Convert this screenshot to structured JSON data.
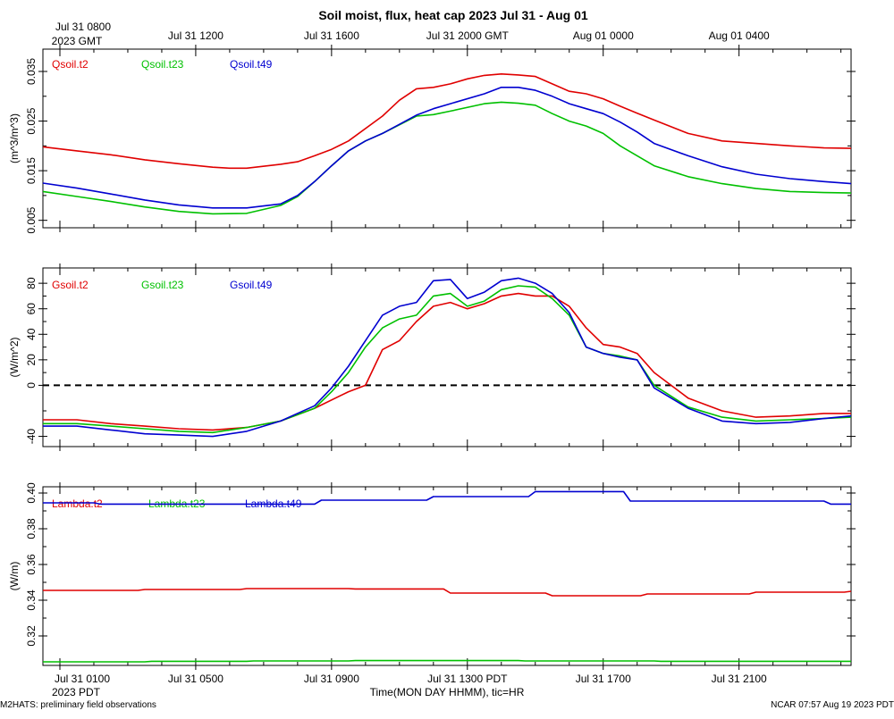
{
  "title": "Soil moist, flux, heat cap 2023 Jul 31 - Aug 01",
  "top_axis": {
    "first_label_line1": "Jul 31 0800",
    "first_label_line2": "2023 GMT",
    "labels": [
      "Jul 31 1200",
      "Jul 31 1600",
      "Jul 31 2000 GMT",
      "Aug 01 0000",
      "Aug 01 0400"
    ]
  },
  "bottom_axis": {
    "first_label_line1": "Jul 31 0100",
    "first_label_line2": "2023 PDT",
    "labels": [
      "Jul 31 0500",
      "Jul 31 0900",
      "Jul 31 1300 PDT",
      "Jul 31 1700",
      "Jul 31 2100"
    ],
    "xlabel": "Time(MON DAY HHMM), tic=HR"
  },
  "footer": {
    "left": "M2HATS: preliminary field observations",
    "right": "NCAR 07:57 Aug 19 2023 PDT"
  },
  "colors": {
    "red": "#e00000",
    "green": "#00c000",
    "blue": "#0000d0"
  },
  "chart_data": [
    {
      "type": "line",
      "ylabel": "(m^3/m^3)",
      "x_unit": "hours since Jul 31 0030 PDT",
      "xlim": [
        0,
        23.8
      ],
      "ylim": [
        0.0035,
        0.0395
      ],
      "yticks": [
        0.005,
        0.015,
        0.025,
        0.035
      ],
      "ytick_labels": [
        "0.005",
        "0.015",
        "0.025",
        "0.035"
      ],
      "series": [
        {
          "name": "Qsoil.t2",
          "color": "#e00000",
          "x": [
            0,
            1,
            2,
            3,
            4,
            5,
            5.5,
            6,
            7,
            7.5,
            8,
            8.5,
            9,
            10,
            10.5,
            11,
            11.5,
            12,
            12.5,
            13,
            13.5,
            14,
            14.5,
            15,
            15.5,
            16,
            16.5,
            17,
            17.5,
            18,
            19,
            20,
            21,
            22,
            23,
            23.8
          ],
          "y": [
            0.0198,
            0.019,
            0.0182,
            0.0172,
            0.0164,
            0.0157,
            0.0155,
            0.0155,
            0.0163,
            0.0168,
            0.018,
            0.0193,
            0.021,
            0.026,
            0.0292,
            0.0315,
            0.0318,
            0.0325,
            0.0335,
            0.0342,
            0.0345,
            0.0343,
            0.034,
            0.0325,
            0.031,
            0.0305,
            0.0295,
            0.028,
            0.0266,
            0.0252,
            0.0225,
            0.021,
            0.0205,
            0.02,
            0.0196,
            0.0195
          ]
        },
        {
          "name": "Qsoil.t23",
          "color": "#00c000",
          "x": [
            0,
            1,
            2,
            3,
            4,
            5,
            6,
            7,
            7.5,
            8,
            8.5,
            9,
            9.5,
            10,
            11,
            11.5,
            12,
            13,
            13.5,
            14,
            14.5,
            15,
            15.5,
            16,
            16.5,
            17,
            17.5,
            18,
            19,
            20,
            21,
            22,
            23,
            23.8
          ],
          "y": [
            0.0108,
            0.0098,
            0.0088,
            0.0077,
            0.0068,
            0.0063,
            0.0064,
            0.008,
            0.0098,
            0.0128,
            0.016,
            0.019,
            0.021,
            0.0225,
            0.026,
            0.0263,
            0.027,
            0.0285,
            0.0288,
            0.0286,
            0.0282,
            0.0265,
            0.025,
            0.024,
            0.0225,
            0.02,
            0.018,
            0.016,
            0.0138,
            0.0124,
            0.0114,
            0.0108,
            0.0106,
            0.0105
          ]
        },
        {
          "name": "Qsoil.t49",
          "color": "#0000d0",
          "x": [
            0,
            1,
            2,
            3,
            4,
            5,
            6,
            7,
            7.5,
            8,
            8.5,
            9,
            9.5,
            10,
            11,
            11.5,
            12,
            13,
            13.5,
            14,
            14.5,
            15,
            15.5,
            16,
            16.5,
            17,
            17.5,
            18,
            19,
            20,
            21,
            22,
            23,
            23.8
          ],
          "y": [
            0.0125,
            0.0115,
            0.0103,
            0.0091,
            0.0081,
            0.0075,
            0.0075,
            0.0083,
            0.01,
            0.0128,
            0.016,
            0.019,
            0.021,
            0.0225,
            0.0262,
            0.0275,
            0.0285,
            0.0305,
            0.0318,
            0.0318,
            0.0312,
            0.03,
            0.0285,
            0.0275,
            0.0265,
            0.0248,
            0.0228,
            0.0205,
            0.018,
            0.0158,
            0.0143,
            0.0134,
            0.0128,
            0.0124
          ]
        }
      ],
      "legend": [
        "Qsoil.t2",
        "Qsoil.t23",
        "Qsoil.t49"
      ]
    },
    {
      "type": "line",
      "ylabel": "(W/m^2)",
      "x_unit": "hours since Jul 31 0030 PDT",
      "xlim": [
        0,
        23.8
      ],
      "ylim": [
        -48,
        92
      ],
      "yticks": [
        -40,
        0,
        20,
        40,
        60,
        80
      ],
      "ytick_labels": [
        "-40",
        "0",
        "20",
        "40",
        "60",
        "80"
      ],
      "zero_line": true,
      "series": [
        {
          "name": "Gsoil.t2",
          "color": "#e00000",
          "x": [
            0,
            1,
            2,
            3,
            4,
            5,
            6,
            7,
            8,
            9,
            9.5,
            10,
            10.5,
            11,
            11.5,
            12,
            12.5,
            13,
            13.5,
            14,
            14.5,
            15,
            15.5,
            16,
            16.5,
            17,
            17.5,
            18,
            19,
            20,
            21,
            22,
            23,
            23.8
          ],
          "y": [
            -27,
            -27,
            -30,
            -32,
            -34,
            -35,
            -33,
            -28,
            -18,
            -5,
            0,
            28,
            35,
            50,
            62,
            65,
            60,
            64,
            70,
            72,
            70,
            70,
            62,
            45,
            32,
            30,
            25,
            10,
            -10,
            -20,
            -25,
            -24,
            -22,
            -22
          ]
        },
        {
          "name": "Gsoil.t23",
          "color": "#00c000",
          "x": [
            0,
            1,
            2,
            3,
            4,
            5,
            6,
            7,
            8,
            8.5,
            9,
            9.5,
            10,
            10.5,
            11,
            11.5,
            12,
            12.5,
            13,
            13.5,
            14,
            14.5,
            15,
            15.5,
            16,
            16.5,
            17,
            17.5,
            18,
            19,
            20,
            21,
            22,
            23,
            23.8
          ],
          "y": [
            -30,
            -30,
            -32,
            -34,
            -36,
            -37,
            -33,
            -28,
            -18,
            -5,
            10,
            30,
            45,
            52,
            55,
            70,
            72,
            62,
            66,
            75,
            78,
            77,
            68,
            55,
            30,
            25,
            23,
            20,
            0,
            -17,
            -25,
            -28,
            -27,
            -26,
            -25
          ]
        },
        {
          "name": "Gsoil.t49",
          "color": "#0000d0",
          "x": [
            0,
            1,
            2,
            3,
            4,
            5,
            6,
            7,
            8,
            8.5,
            9,
            9.5,
            10,
            10.5,
            11,
            11.5,
            12,
            12.5,
            13,
            13.5,
            14,
            14.5,
            15,
            15.5,
            16,
            16.5,
            17,
            17.5,
            18,
            19,
            20,
            21,
            22,
            23,
            23.8
          ],
          "y": [
            -32,
            -32,
            -35,
            -38,
            -39,
            -40,
            -36,
            -28,
            -16,
            -2,
            15,
            35,
            55,
            62,
            65,
            82,
            83,
            68,
            73,
            82,
            84,
            80,
            72,
            57,
            30,
            25,
            22,
            20,
            -2,
            -18,
            -28,
            -30,
            -29,
            -26,
            -24
          ]
        }
      ],
      "legend": [
        "Gsoil.t2",
        "Gsoil.t23",
        "Gsoil.t49"
      ]
    },
    {
      "type": "line",
      "ylabel": "(W/m)",
      "x_unit": "hours since Jul 31 0030 PDT",
      "xlim": [
        0,
        23.8
      ],
      "ylim": [
        0.3035,
        0.4035
      ],
      "yticks": [
        0.32,
        0.34,
        0.36,
        0.38,
        0.4
      ],
      "ytick_labels": [
        "0.32",
        "0.34",
        "0.36",
        "0.38",
        "0.40"
      ],
      "series": [
        {
          "name": "Lambda.t2",
          "color": "#e00000",
          "x": [
            0,
            2.8,
            3.0,
            5.8,
            6.0,
            9.0,
            9.2,
            11.8,
            12.0,
            14.8,
            15.0,
            17.6,
            17.8,
            20.8,
            21.0,
            23.6,
            23.8
          ],
          "y": [
            0.3455,
            0.3455,
            0.346,
            0.346,
            0.3465,
            0.3465,
            0.3463,
            0.3463,
            0.344,
            0.344,
            0.3425,
            0.3425,
            0.3435,
            0.3435,
            0.3445,
            0.3445,
            0.345
          ]
        },
        {
          "name": "Lambda.t23",
          "color": "#00c000",
          "x": [
            0,
            3,
            3.2,
            6,
            6.2,
            9,
            9.2,
            14,
            14.2,
            18,
            18.2,
            23.8
          ],
          "y": [
            0.3055,
            0.3055,
            0.3058,
            0.3058,
            0.306,
            0.306,
            0.3062,
            0.3062,
            0.306,
            0.306,
            0.3058,
            0.3058
          ]
        },
        {
          "name": "Lambda.t49",
          "color": "#0000d0",
          "x": [
            0,
            1.5,
            1.7,
            8.0,
            8.2,
            11.3,
            11.5,
            14.3,
            14.5,
            17.1,
            17.3,
            23.0,
            23.2,
            23.8
          ],
          "y": [
            0.3945,
            0.3945,
            0.3938,
            0.3938,
            0.396,
            0.396,
            0.398,
            0.398,
            0.4008,
            0.4008,
            0.3955,
            0.3955,
            0.3938,
            0.3938
          ]
        }
      ],
      "legend": [
        "Lambda.t2",
        "Lambda.t23",
        "Lambda.t49"
      ]
    }
  ]
}
